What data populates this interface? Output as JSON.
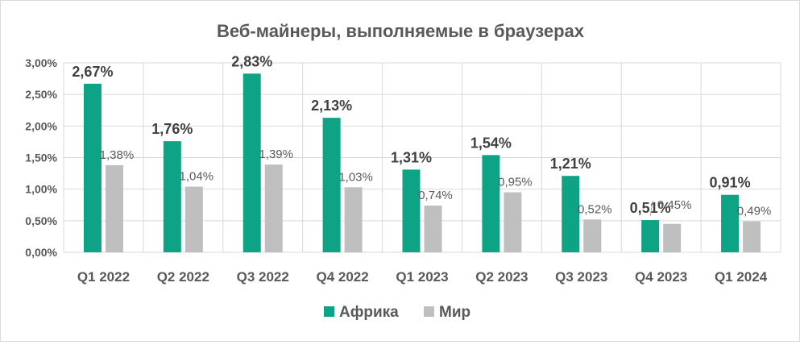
{
  "chart_data": {
    "type": "bar",
    "title": "Веб-майнеры, выполняемые в браузерах",
    "categories": [
      "Q1 2022",
      "Q2 2022",
      "Q3 2022",
      "Q4 2022",
      "Q1 2023",
      "Q2 2023",
      "Q3 2023",
      "Q4 2023",
      "Q1 2024"
    ],
    "series": [
      {
        "name": "Африка",
        "color": "#0fa386",
        "values": [
          2.67,
          1.76,
          2.83,
          2.13,
          1.31,
          1.54,
          1.21,
          0.51,
          0.91
        ],
        "labels": [
          "2,67%",
          "1,76%",
          "2,83%",
          "2,13%",
          "1,31%",
          "1,54%",
          "1,21%",
          "0,51%",
          "0,91%"
        ]
      },
      {
        "name": "Мир",
        "color": "#bfbfbf",
        "values": [
          1.38,
          1.04,
          1.39,
          1.03,
          0.74,
          0.95,
          0.52,
          0.45,
          0.49
        ],
        "labels": [
          "1,38%",
          "1,04%",
          "1,39%",
          "1,03%",
          "0,74%",
          "0,95%",
          "0,52%",
          "0,45%",
          "0,49%"
        ]
      }
    ],
    "ylim": [
      0,
      3
    ],
    "yticks": [
      0,
      0.5,
      1,
      1.5,
      2,
      2.5,
      3
    ],
    "ytick_labels": [
      "0,00%",
      "0,50%",
      "1,00%",
      "1,50%",
      "2,00%",
      "2,50%",
      "3,00%"
    ],
    "xlabel": "",
    "ylabel": "",
    "grid": true,
    "legend_position": "bottom"
  }
}
